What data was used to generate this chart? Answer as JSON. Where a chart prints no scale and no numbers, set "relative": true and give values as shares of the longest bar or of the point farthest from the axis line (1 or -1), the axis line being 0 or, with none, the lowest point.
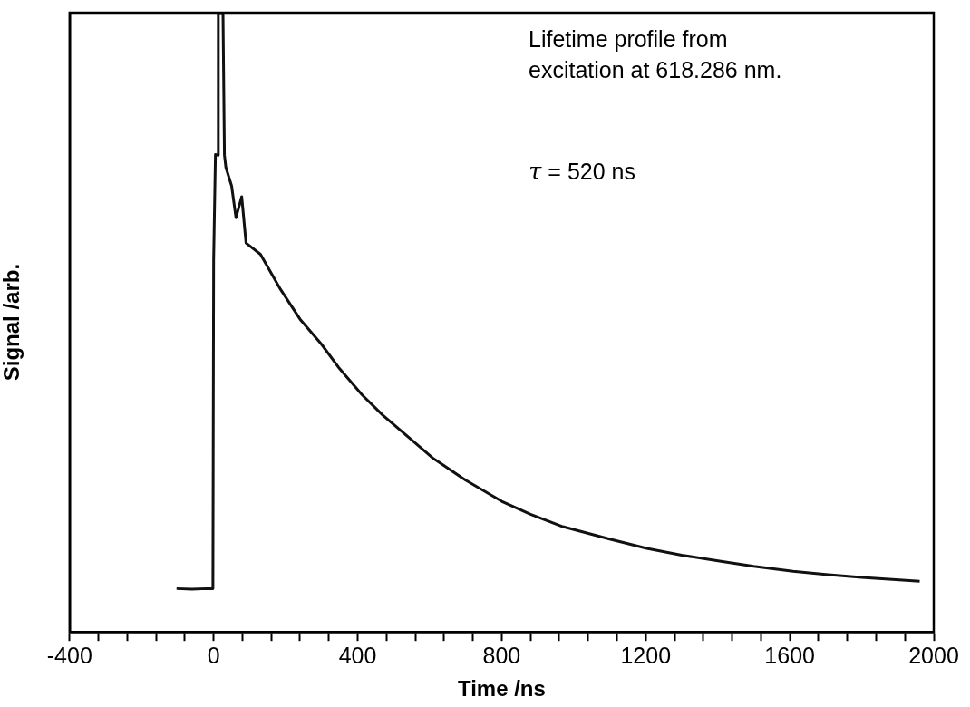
{
  "chart_data": {
    "type": "line",
    "relative": true,
    "xlabel": "Time /ns",
    "ylabel": "Signal /arb.",
    "xlim": [
      -400,
      2000
    ],
    "xticks": [
      -400,
      {
        "value": -320,
        "label": null
      },
      {
        "value": -240,
        "label": null
      },
      {
        "value": -160,
        "label": null
      },
      {
        "value": -80,
        "label": null
      },
      0,
      {
        "value": 80,
        "label": null
      },
      {
        "value": 160,
        "label": null
      },
      {
        "value": 240,
        "label": null
      },
      {
        "value": 320,
        "label": null
      },
      400,
      {
        "value": 480,
        "label": null
      },
      {
        "value": 560,
        "label": null
      },
      {
        "value": 640,
        "label": null
      },
      {
        "value": 720,
        "label": null
      },
      800,
      {
        "value": 880,
        "label": null
      },
      {
        "value": 960,
        "label": null
      },
      {
        "value": 1040,
        "label": null
      },
      {
        "value": 1120,
        "label": null
      },
      1200,
      {
        "value": 1280,
        "label": null
      },
      {
        "value": 1360,
        "label": null
      },
      {
        "value": 1440,
        "label": null
      },
      {
        "value": 1520,
        "label": null
      },
      1600,
      {
        "value": 1680,
        "label": null
      },
      {
        "value": 1760,
        "label": null
      },
      {
        "value": 1840,
        "label": null
      },
      {
        "value": 1920,
        "label": null
      },
      2000
    ],
    "x": [
      -103,
      -60,
      -20,
      -2,
      0,
      5,
      11,
      13,
      20,
      26,
      30,
      34,
      50,
      62,
      78,
      90,
      130,
      186,
      240,
      299,
      350,
      412,
      470,
      526,
      608,
      629,
      700,
      800,
      880,
      970,
      1100,
      1203,
      1300,
      1409,
      1500,
      1609,
      1700,
      1800,
      1961
    ],
    "series": [
      {
        "color": "#111111",
        "values": [
          0.07,
          0.069,
          0.07,
          0.07,
          0.6,
          0.771,
          0.77,
          1,
          1,
          1,
          0.77,
          0.75,
          0.72,
          0.669,
          0.703,
          0.628,
          0.61,
          0.553,
          0.505,
          0.465,
          0.425,
          0.383,
          0.35,
          0.322,
          0.281,
          0.273,
          0.245,
          0.211,
          0.19,
          0.17,
          0.15,
          0.135,
          0.124,
          0.114,
          0.106,
          0.098,
          0.093,
          0.088,
          0.082
        ]
      }
    ],
    "marker": "none",
    "grid": false,
    "legend": false,
    "annotations": [
      "Lifetime profile from\nexcitation at 618.286 nm.",
      "τ = 520 ns"
    ]
  }
}
